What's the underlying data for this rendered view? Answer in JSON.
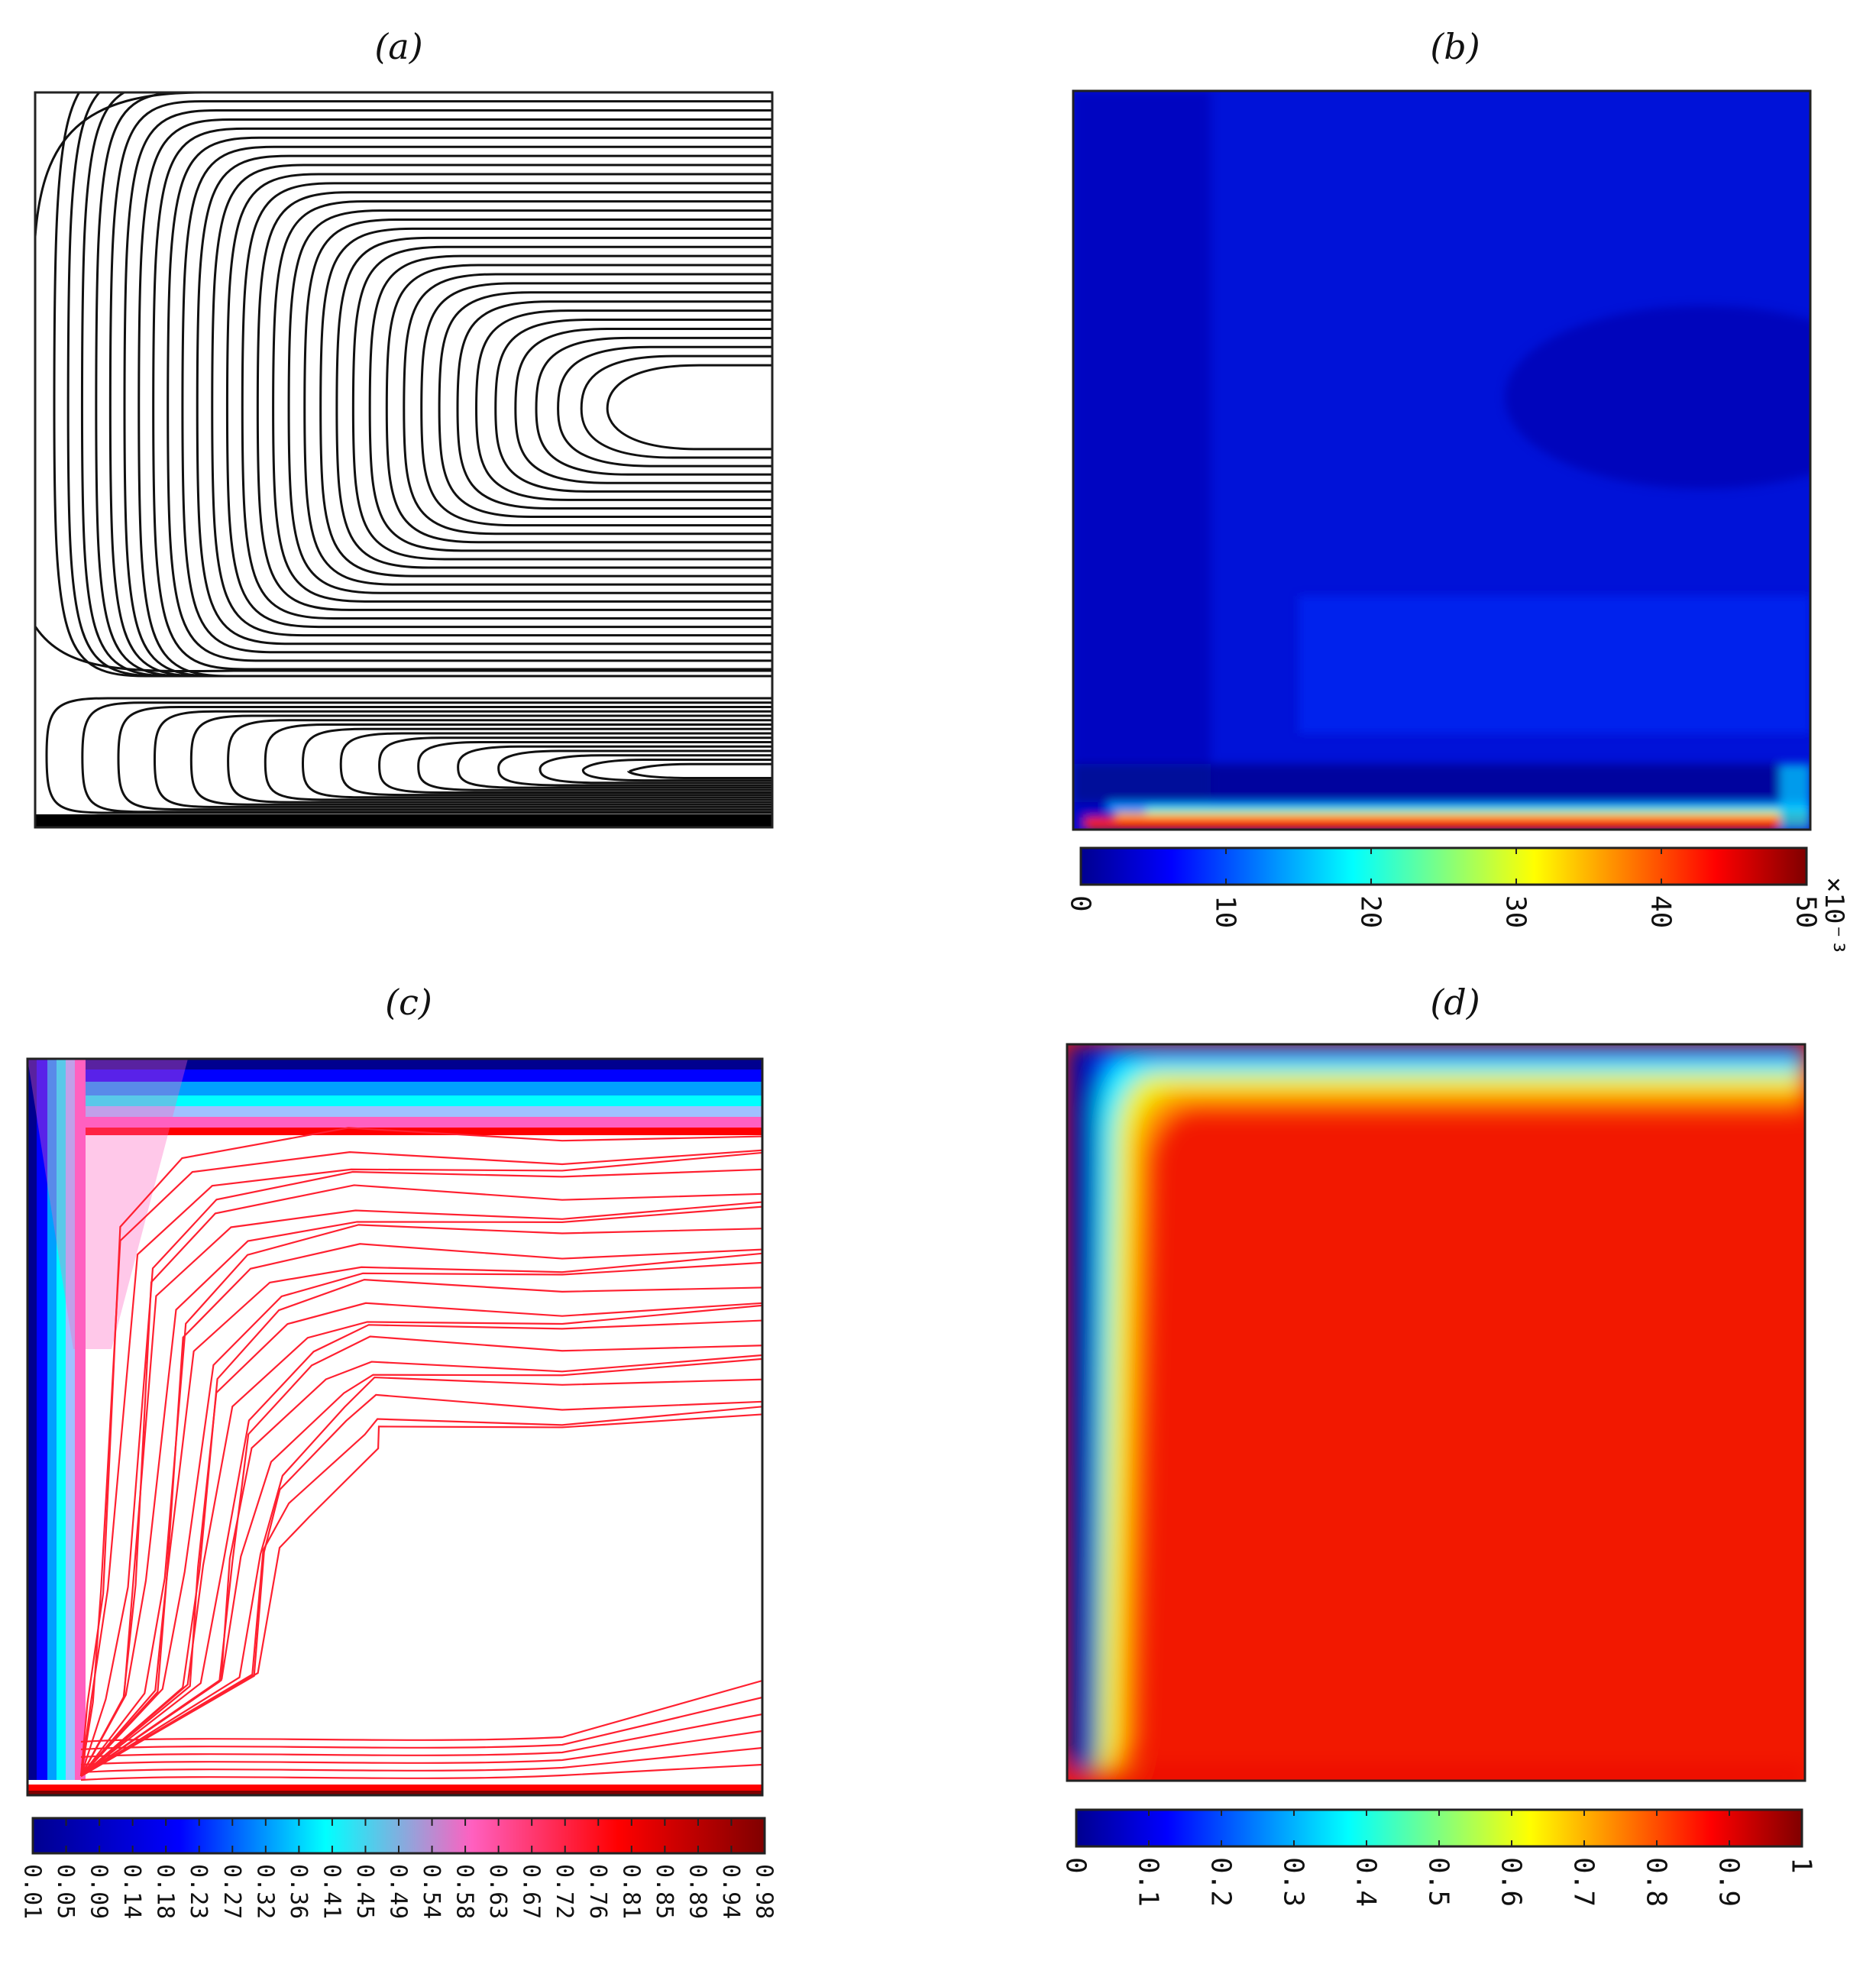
{
  "panels": {
    "a": {
      "label": "(a)"
    },
    "b": {
      "label": "(b)"
    },
    "c": {
      "label": "(c)"
    },
    "d": {
      "label": "(d)"
    }
  },
  "colors": {
    "jet": [
      "#00008f",
      "#0000ff",
      "#0080ff",
      "#00ffff",
      "#80ff80",
      "#ffff00",
      "#ff8000",
      "#ff0000",
      "#800000"
    ],
    "c_map": [
      "#00008f",
      "#0000ff",
      "#00ffff",
      "#ff60c0",
      "#ff0000",
      "#800000"
    ],
    "contour_a": "#111111",
    "contour_c": "#ff2030"
  },
  "chart_data": [
    {
      "panel": "(a)",
      "type": "contour",
      "title": "",
      "xlabel": "",
      "ylabel": "",
      "colorbar": false
    },
    {
      "panel": "(b)",
      "type": "heatmap",
      "title": "",
      "xlabel": "",
      "ylabel": "",
      "colorbar": {
        "ticks": [
          "0",
          "10",
          "20",
          "30",
          "40",
          "50"
        ],
        "range": [
          0,
          50
        ],
        "multiplier": "×10⁻³"
      }
    },
    {
      "panel": "(c)",
      "type": "contour",
      "title": "",
      "xlabel": "",
      "ylabel": "",
      "colorbar": {
        "ticks": [
          "0.01",
          "0.05",
          "0.09",
          "0.14",
          "0.18",
          "0.23",
          "0.27",
          "0.32",
          "0.36",
          "0.41",
          "0.45",
          "0.49",
          "0.54",
          "0.58",
          "0.63",
          "0.67",
          "0.72",
          "0.76",
          "0.81",
          "0.85",
          "0.89",
          "0.94",
          "0.98"
        ],
        "range": [
          0.01,
          0.98
        ]
      }
    },
    {
      "panel": "(d)",
      "type": "heatmap",
      "title": "",
      "xlabel": "",
      "ylabel": "",
      "colorbar": {
        "ticks": [
          "0",
          "0.1",
          "0.2",
          "0.3",
          "0.4",
          "0.5",
          "0.6",
          "0.7",
          "0.8",
          "0.9",
          "1"
        ],
        "range": [
          0,
          1
        ]
      }
    }
  ]
}
